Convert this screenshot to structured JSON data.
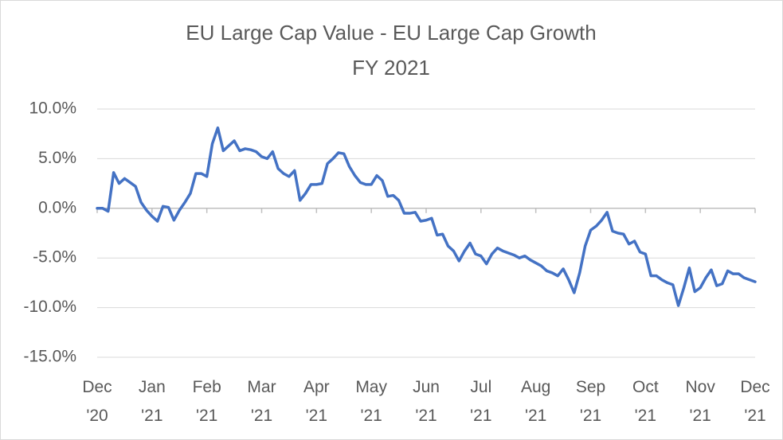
{
  "chart_data": {
    "type": "line",
    "title": "EU Large Cap Value - EU Large Cap Growth",
    "subtitle": "FY 2021",
    "categories": [
      "Dec\n'20",
      null,
      null,
      null,
      null,
      null,
      null,
      null,
      null,
      null,
      "Jan\n'21",
      null,
      null,
      null,
      null,
      null,
      null,
      null,
      null,
      null,
      "Feb\n'21",
      null,
      null,
      null,
      null,
      null,
      null,
      null,
      null,
      null,
      "Mar\n'21",
      null,
      null,
      null,
      null,
      null,
      null,
      null,
      null,
      null,
      "Apr\n'21",
      null,
      null,
      null,
      null,
      null,
      null,
      null,
      null,
      null,
      "May\n'21",
      null,
      null,
      null,
      null,
      null,
      null,
      null,
      null,
      null,
      "Jun\n'21",
      null,
      null,
      null,
      null,
      null,
      null,
      null,
      null,
      null,
      "Jul\n'21",
      null,
      null,
      null,
      null,
      null,
      null,
      null,
      null,
      null,
      "Aug\n'21",
      null,
      null,
      null,
      null,
      null,
      null,
      null,
      null,
      null,
      "Sep\n'21",
      null,
      null,
      null,
      null,
      null,
      null,
      null,
      null,
      null,
      "Oct\n'21",
      null,
      null,
      null,
      null,
      null,
      null,
      null,
      null,
      null,
      "Nov\n'21",
      null,
      null,
      null,
      null,
      null,
      null,
      null,
      null,
      null,
      "Dec\n'21"
    ],
    "series": [
      {
        "color": "#4472c4",
        "values": [
          0,
          0.0,
          -0.3,
          3.6,
          2.5,
          3.0,
          2.6,
          2.2,
          0.6,
          -0.2,
          -0.8,
          -1.3,
          0.2,
          0.1,
          -1.2,
          -0.2,
          0.6,
          1.5,
          3.5,
          3.5,
          3.2,
          6.5,
          8.1,
          5.8,
          6.3,
          6.8,
          5.8,
          6.0,
          5.9,
          5.7,
          5.2,
          5.0,
          5.7,
          4.0,
          3.5,
          3.2,
          3.8,
          0.8,
          1.5,
          2.4,
          2.4,
          2.5,
          4.5,
          5.0,
          5.6,
          5.5,
          4.2,
          3.3,
          2.6,
          2.4,
          2.4,
          3.3,
          2.8,
          1.2,
          1.3,
          0.8,
          -0.5,
          -0.5,
          -0.4,
          -1.3,
          -1.2,
          -1.0,
          -2.7,
          -2.6,
          -3.8,
          -4.3,
          -5.3,
          -4.3,
          -3.5,
          -4.6,
          -4.8,
          -5.6,
          -4.6,
          -4.0,
          -4.3,
          -4.5,
          -4.7,
          -5.0,
          -4.8,
          -5.2,
          -5.5,
          -5.8,
          -6.3,
          -6.5,
          -6.8,
          -6.1,
          -7.2,
          -8.5,
          -6.5,
          -3.8,
          -2.2,
          -1.8,
          -1.2,
          -0.4,
          -2.3,
          -2.5,
          -2.6,
          -3.6,
          -3.3,
          -4.4,
          -4.6,
          -6.8,
          -6.8,
          -7.2,
          -7.5,
          -7.7,
          -9.8,
          -8.0,
          -6.0,
          -8.4,
          -8.0,
          -7.0,
          -6.2,
          -7.8,
          -7.6,
          -6.3,
          -6.6,
          -6.6,
          -7.0,
          -7.2,
          -7.4
        ]
      }
    ],
    "ylim": [
      -15,
      10
    ],
    "yticks": [
      {
        "value": -15,
        "label": "-15.0%"
      },
      {
        "value": -10,
        "label": "-10.0%"
      },
      {
        "value": -5,
        "label": "-5.0%"
      },
      {
        "value": 0,
        "label": "0.0%"
      },
      {
        "value": 5,
        "label": "5.0%"
      },
      {
        "value": 10,
        "label": "10.0%"
      }
    ],
    "grid": true
  }
}
